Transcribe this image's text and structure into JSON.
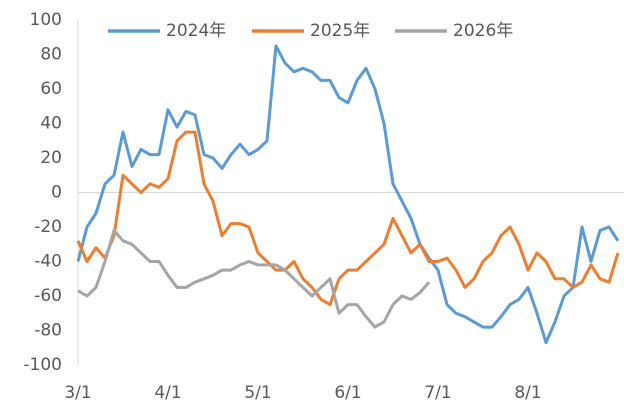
{
  "chart_data": {
    "type": "line",
    "categories": [
      "3/1",
      null,
      null,
      null,
      null,
      null,
      null,
      null,
      null,
      null,
      "4/1",
      null,
      null,
      null,
      null,
      null,
      null,
      null,
      null,
      null,
      "5/1",
      null,
      null,
      null,
      null,
      null,
      null,
      null,
      null,
      null,
      "6/1",
      null,
      null,
      null,
      null,
      null,
      null,
      null,
      null,
      null,
      "7/1",
      null,
      null,
      null,
      null,
      null,
      null,
      null,
      null,
      null,
      "8/1",
      null,
      null,
      null,
      null,
      null,
      null,
      null,
      null,
      null,
      null
    ],
    "series": [
      {
        "name": "2024年",
        "color": "#5b9bd5",
        "values": [
          -40,
          -20,
          -12,
          5,
          10,
          35,
          15,
          25,
          22,
          22,
          48,
          38,
          47,
          45,
          22,
          20,
          14,
          22,
          28,
          22,
          25,
          30,
          85,
          75,
          70,
          72,
          70,
          65,
          65,
          55,
          52,
          65,
          72,
          60,
          40,
          5,
          -5,
          -15,
          -30,
          -38,
          -45,
          -65,
          -70,
          -72,
          -75,
          -78,
          -78,
          -72,
          -65,
          -62,
          -55,
          -70,
          -87,
          -75,
          -60,
          -55,
          -20,
          -40,
          -22,
          -20,
          -28
        ]
      },
      {
        "name": "2025年",
        "color": "#ed7d31",
        "values": [
          -28,
          -40,
          -32,
          -38,
          -25,
          10,
          5,
          0,
          5,
          3,
          8,
          30,
          35,
          35,
          5,
          -5,
          -25,
          -18,
          -18,
          -20,
          -35,
          -40,
          -45,
          -45,
          -40,
          -50,
          -55,
          -62,
          -65,
          -50,
          -45,
          -45,
          -40,
          -35,
          -30,
          -15,
          -25,
          -35,
          -30,
          -40,
          -40,
          -38,
          -45,
          -55,
          -50,
          -40,
          -35,
          -25,
          -20,
          -30,
          -45,
          -35,
          -40,
          -50,
          -50,
          -55,
          -52,
          -42,
          -50,
          -52,
          -35
        ]
      },
      {
        "name": "2026年",
        "color": "#a5a5a5",
        "values": [
          -57,
          -60,
          -55,
          -40,
          -22,
          -28,
          -30,
          -35,
          -40,
          -40,
          -48,
          -55,
          -55,
          -52,
          -50,
          -48,
          -45,
          -45,
          -42,
          -40,
          -42,
          -42,
          -42,
          -45,
          -50,
          -55,
          -60,
          -55,
          -50,
          -70,
          -65,
          -65,
          -72,
          -78,
          -75,
          -65,
          -60,
          -62,
          -58,
          -52,
          null,
          null,
          null,
          null,
          null,
          null,
          null,
          null,
          null,
          null,
          null,
          null,
          null,
          null,
          null,
          null,
          null,
          null,
          null,
          null,
          null
        ]
      }
    ],
    "ylim": [
      -100,
      100
    ],
    "yticks": [
      -100,
      -80,
      -60,
      -40,
      -20,
      0,
      20,
      40,
      60,
      80,
      100
    ],
    "legend": "top"
  }
}
